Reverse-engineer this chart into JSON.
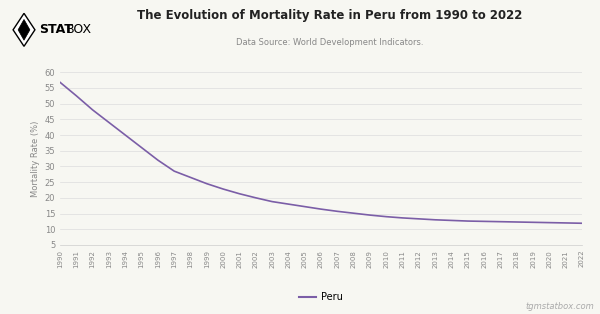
{
  "title": "The Evolution of Mortality Rate in Peru from 1990 to 2022",
  "subtitle": "Data Source: World Development Indicators.",
  "ylabel": "Mortality Rate (%)",
  "watermark": "tgmstatbox.com",
  "line_color": "#7b5ea7",
  "line_label": "Peru",
  "background_color": "#f7f7f2",
  "ylim": [
    5,
    60
  ],
  "yticks": [
    5,
    10,
    15,
    20,
    25,
    30,
    35,
    40,
    45,
    50,
    55,
    60
  ],
  "years": [
    1990,
    1991,
    1992,
    1993,
    1994,
    1995,
    1996,
    1997,
    1998,
    1999,
    2000,
    2001,
    2002,
    2003,
    2004,
    2005,
    2006,
    2007,
    2008,
    2009,
    2010,
    2011,
    2012,
    2013,
    2014,
    2015,
    2016,
    2017,
    2018,
    2019,
    2020,
    2021,
    2022
  ],
  "values": [
    56.8,
    52.5,
    48.0,
    44.0,
    40.0,
    36.0,
    32.0,
    28.5,
    26.5,
    24.5,
    22.8,
    21.3,
    20.0,
    18.8,
    18.0,
    17.2,
    16.4,
    15.7,
    15.1,
    14.5,
    14.0,
    13.6,
    13.3,
    13.0,
    12.8,
    12.6,
    12.5,
    12.4,
    12.3,
    12.2,
    12.1,
    12.0,
    11.9
  ]
}
